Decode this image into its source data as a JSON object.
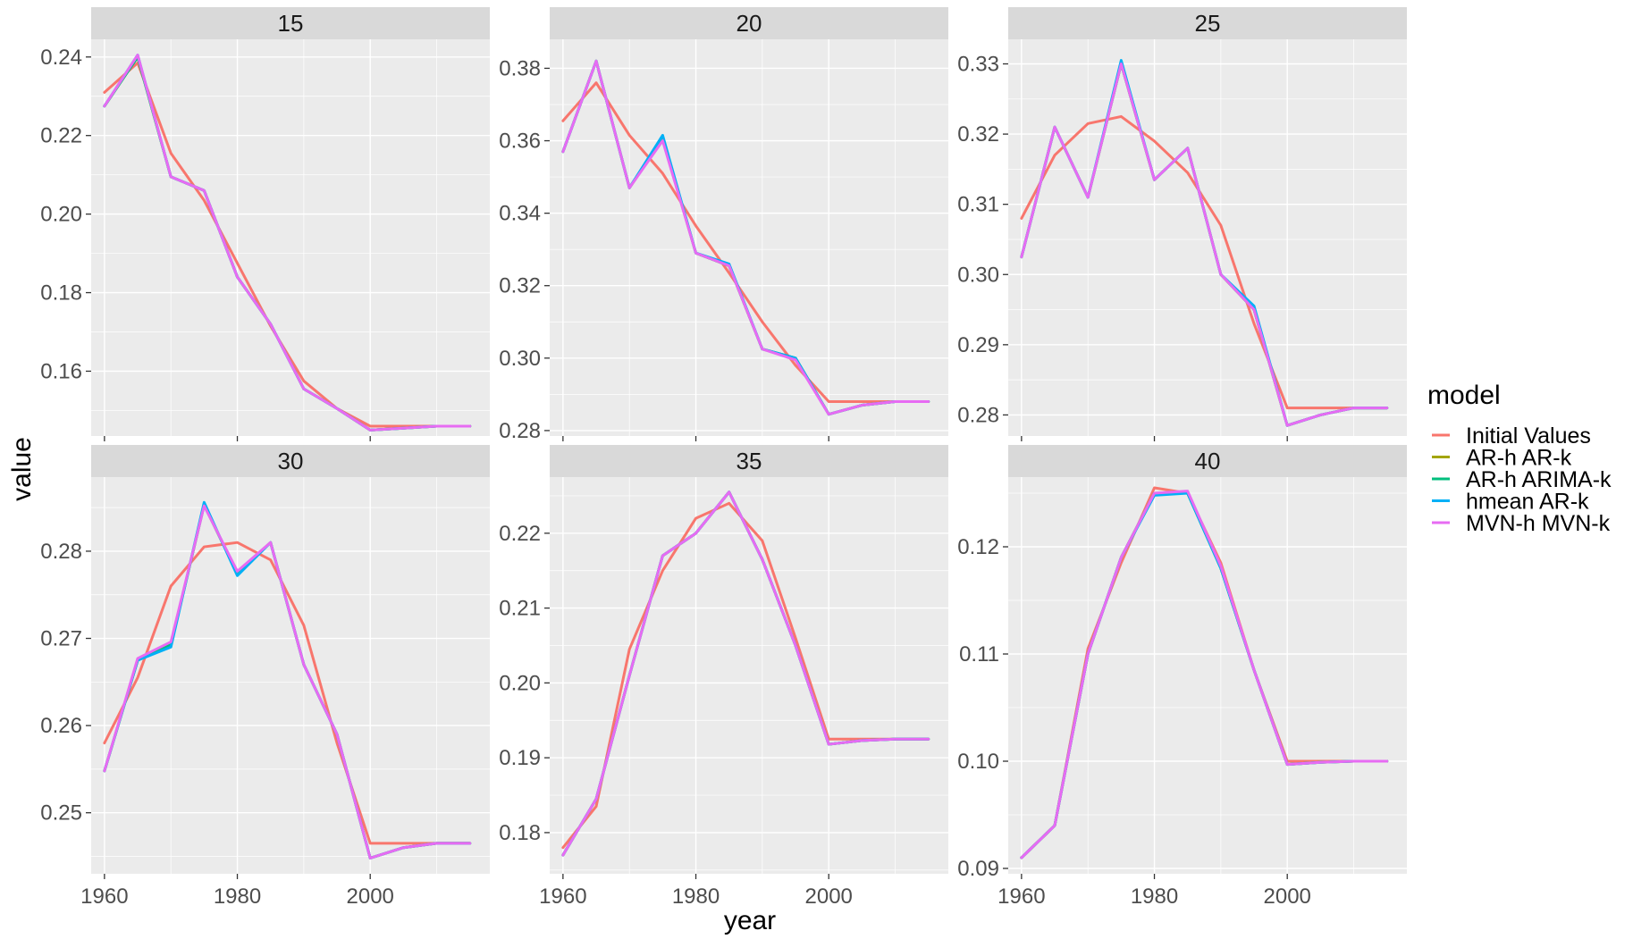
{
  "chart_data": {
    "type": "line",
    "xlabel": "year",
    "ylabel": "value",
    "legend": {
      "title": "model",
      "position": "right"
    },
    "grid": true,
    "x": [
      1960,
      1965,
      1970,
      1975,
      1980,
      1985,
      1990,
      1995,
      2000,
      2005,
      2010,
      2015
    ],
    "xlim": [
      1958,
      2018
    ],
    "xticks": [
      1960,
      1980,
      2000
    ],
    "series_styles": [
      {
        "name": "Initial Values",
        "color": "#F8766D"
      },
      {
        "name": "AR-h AR-k",
        "color": "#A3A500"
      },
      {
        "name": "AR-h ARIMA-k",
        "color": "#00BF7D"
      },
      {
        "name": "hmean AR-k",
        "color": "#00B0F6"
      },
      {
        "name": "MVN-h MVN-k",
        "color": "#E76BF3"
      }
    ],
    "panels": [
      {
        "label": "15",
        "ylim": [
          0.1435,
          0.2445
        ],
        "yticks": [
          "0.16",
          "0.18",
          "0.20",
          "0.22",
          "0.24"
        ],
        "series": [
          {
            "name": "Initial Values",
            "values": [
              0.231,
              0.2385,
              0.2155,
              0.2035,
              0.1875,
              0.1715,
              0.1575,
              0.1505,
              0.146,
              0.146,
              0.146,
              0.146
            ]
          },
          {
            "name": "AR-h AR-k",
            "values": [
              0.2275,
              0.24,
              0.2095,
              0.206,
              0.184,
              0.172,
              0.1555,
              0.1505,
              0.145,
              0.1455,
              0.146,
              0.146
            ]
          },
          {
            "name": "AR-h ARIMA-k",
            "values": [
              0.2275,
              0.24,
              0.2095,
              0.206,
              0.184,
              0.172,
              0.1555,
              0.1505,
              0.145,
              0.1455,
              0.146,
              0.146
            ]
          },
          {
            "name": "hmean AR-k",
            "values": [
              0.2275,
              0.2405,
              0.2095,
              0.206,
              0.184,
              0.172,
              0.1555,
              0.1505,
              0.145,
              0.1455,
              0.146,
              0.146
            ]
          },
          {
            "name": "MVN-h MVN-k",
            "values": [
              0.2275,
              0.2405,
              0.2095,
              0.206,
              0.184,
              0.172,
              0.1555,
              0.1505,
              0.145,
              0.1455,
              0.146,
              0.146
            ]
          }
        ]
      },
      {
        "label": "20",
        "ylim": [
          0.2785,
          0.388
        ],
        "yticks": [
          "0.28",
          "0.30",
          "0.32",
          "0.34",
          "0.36",
          "0.38"
        ],
        "series": [
          {
            "name": "Initial Values",
            "values": [
              0.3655,
              0.376,
              0.3615,
              0.351,
              0.3365,
              0.3235,
              0.31,
              0.298,
              0.288,
              0.288,
              0.288,
              0.288
            ]
          },
          {
            "name": "AR-h AR-k",
            "values": [
              0.357,
              0.382,
              0.347,
              0.3605,
              0.329,
              0.3255,
              0.3025,
              0.3,
              0.2845,
              0.287,
              0.288,
              0.288
            ]
          },
          {
            "name": "AR-h ARIMA-k",
            "values": [
              0.357,
              0.382,
              0.347,
              0.361,
              0.329,
              0.3255,
              0.3025,
              0.3,
              0.2845,
              0.287,
              0.288,
              0.288
            ]
          },
          {
            "name": "hmean AR-k",
            "values": [
              0.357,
              0.382,
              0.347,
              0.3615,
              0.329,
              0.326,
              0.3025,
              0.3,
              0.2845,
              0.287,
              0.288,
              0.288
            ]
          },
          {
            "name": "MVN-h MVN-k",
            "values": [
              0.357,
              0.382,
              0.347,
              0.36,
              0.329,
              0.3255,
              0.3025,
              0.2995,
              0.2845,
              0.287,
              0.288,
              0.288
            ]
          }
        ]
      },
      {
        "label": "25",
        "ylim": [
          0.277,
          0.3335
        ],
        "yticks": [
          "0.28",
          "0.29",
          "0.30",
          "0.31",
          "0.32",
          "0.33"
        ],
        "series": [
          {
            "name": "Initial Values",
            "values": [
              0.308,
              0.317,
              0.3215,
              0.3225,
              0.319,
              0.3145,
              0.307,
              0.293,
              0.281,
              0.281,
              0.281,
              0.281
            ]
          },
          {
            "name": "AR-h AR-k",
            "values": [
              0.3025,
              0.321,
              0.311,
              0.33,
              0.3135,
              0.318,
              0.3,
              0.295,
              0.2785,
              0.28,
              0.281,
              0.281
            ]
          },
          {
            "name": "AR-h ARIMA-k",
            "values": [
              0.3025,
              0.321,
              0.311,
              0.33,
              0.3135,
              0.318,
              0.3,
              0.295,
              0.2785,
              0.28,
              0.281,
              0.281
            ]
          },
          {
            "name": "hmean AR-k",
            "values": [
              0.3025,
              0.321,
              0.311,
              0.3305,
              0.3135,
              0.318,
              0.3,
              0.2955,
              0.2785,
              0.28,
              0.281,
              0.281
            ]
          },
          {
            "name": "MVN-h MVN-k",
            "values": [
              0.3025,
              0.321,
              0.311,
              0.33,
              0.3135,
              0.318,
              0.3,
              0.295,
              0.2785,
              0.28,
              0.281,
              0.281
            ]
          }
        ]
      },
      {
        "label": "30",
        "ylim": [
          0.243,
          0.2885
        ],
        "yticks": [
          "0.25",
          "0.26",
          "0.27",
          "0.28"
        ],
        "series": [
          {
            "name": "Initial Values",
            "values": [
              0.258,
              0.2655,
              0.276,
              0.2805,
              0.281,
              0.279,
              0.2715,
              0.258,
              0.2465,
              0.2465,
              0.2465,
              0.2465
            ]
          },
          {
            "name": "AR-h AR-k",
            "values": [
              0.2548,
              0.2675,
              0.2693,
              0.2853,
              0.2775,
              0.281,
              0.267,
              0.259,
              0.2448,
              0.246,
              0.2465,
              0.2465
            ]
          },
          {
            "name": "AR-h ARIMA-k",
            "values": [
              0.2548,
              0.2675,
              0.2693,
              0.2853,
              0.2775,
              0.281,
              0.267,
              0.259,
              0.2448,
              0.246,
              0.2465,
              0.2465
            ]
          },
          {
            "name": "hmean AR-k",
            "values": [
              0.2548,
              0.2675,
              0.269,
              0.2856,
              0.2772,
              0.281,
              0.267,
              0.259,
              0.2448,
              0.246,
              0.2465,
              0.2465
            ]
          },
          {
            "name": "MVN-h MVN-k",
            "values": [
              0.2548,
              0.2677,
              0.2696,
              0.2852,
              0.2777,
              0.281,
              0.267,
              0.259,
              0.2448,
              0.246,
              0.2465,
              0.2465
            ]
          }
        ]
      },
      {
        "label": "35",
        "ylim": [
          0.1745,
          0.2275
        ],
        "yticks": [
          "0.18",
          "0.19",
          "0.20",
          "0.21",
          "0.22"
        ],
        "series": [
          {
            "name": "Initial Values",
            "values": [
              0.178,
              0.1835,
              0.2045,
              0.215,
              0.222,
              0.224,
              0.219,
              0.206,
              0.1925,
              0.1925,
              0.1925,
              0.1925
            ]
          },
          {
            "name": "AR-h AR-k",
            "values": [
              0.177,
              0.1845,
              0.201,
              0.217,
              0.22,
              0.2255,
              0.2165,
              0.205,
              0.1918,
              0.1923,
              0.1925,
              0.1925
            ]
          },
          {
            "name": "AR-h ARIMA-k",
            "values": [
              0.177,
              0.1845,
              0.201,
              0.217,
              0.22,
              0.2255,
              0.2165,
              0.205,
              0.1918,
              0.1923,
              0.1925,
              0.1925
            ]
          },
          {
            "name": "hmean AR-k",
            "values": [
              0.177,
              0.1845,
              0.201,
              0.217,
              0.22,
              0.2255,
              0.2165,
              0.205,
              0.1918,
              0.1923,
              0.1925,
              0.1925
            ]
          },
          {
            "name": "MVN-h MVN-k",
            "values": [
              0.177,
              0.1845,
              0.201,
              0.217,
              0.22,
              0.2255,
              0.2165,
              0.205,
              0.1918,
              0.1923,
              0.1925,
              0.1925
            ]
          }
        ]
      },
      {
        "label": "40",
        "ylim": [
          0.0895,
          0.1265
        ],
        "yticks": [
          "0.09",
          "0.10",
          "0.11",
          "0.12"
        ],
        "series": [
          {
            "name": "Initial Values",
            "values": [
              0.091,
              0.094,
              0.1105,
              0.1185,
              0.1255,
              0.125,
              0.1185,
              0.1085,
              0.1,
              0.1,
              0.1,
              0.1
            ]
          },
          {
            "name": "AR-h AR-k",
            "values": [
              0.091,
              0.094,
              0.11,
              0.119,
              0.125,
              0.125,
              0.118,
              0.1085,
              0.0997,
              0.0999,
              0.1,
              0.1
            ]
          },
          {
            "name": "AR-h ARIMA-k",
            "values": [
              0.091,
              0.094,
              0.11,
              0.119,
              0.125,
              0.125,
              0.118,
              0.1085,
              0.0997,
              0.0999,
              0.1,
              0.1
            ]
          },
          {
            "name": "hmean AR-k",
            "values": [
              0.091,
              0.094,
              0.11,
              0.119,
              0.1248,
              0.125,
              0.118,
              0.1085,
              0.0997,
              0.0999,
              0.1,
              0.1
            ]
          },
          {
            "name": "MVN-h MVN-k",
            "values": [
              0.091,
              0.094,
              0.11,
              0.119,
              0.125,
              0.1252,
              0.1182,
              0.1085,
              0.0997,
              0.0999,
              0.1,
              0.1
            ]
          }
        ]
      }
    ]
  }
}
